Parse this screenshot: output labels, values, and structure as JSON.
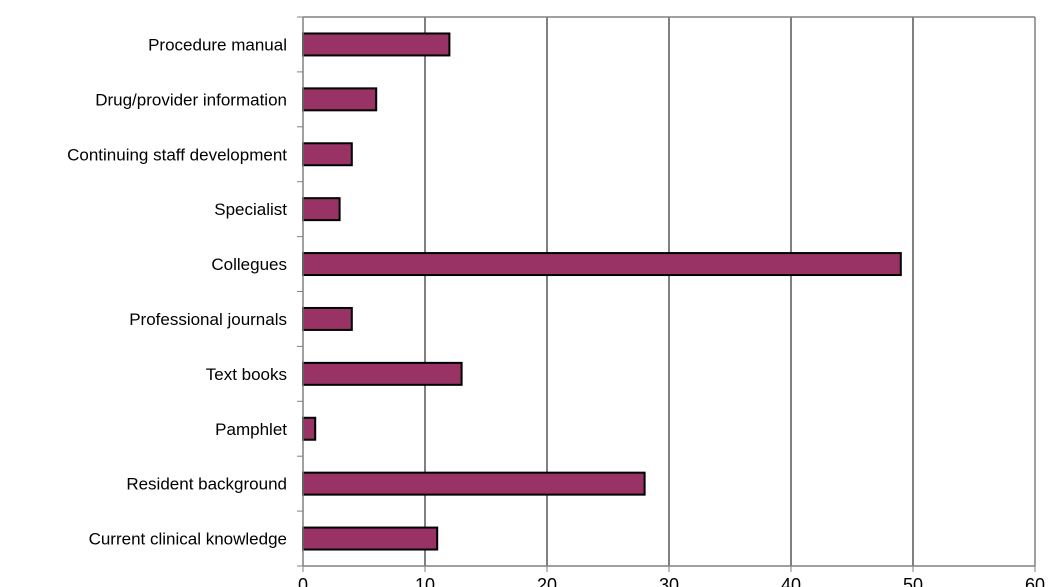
{
  "chart_data": {
    "type": "bar",
    "orientation": "horizontal",
    "categories": [
      "Procedure manual",
      "Drug/provider information",
      "Continuing staff development",
      "Specialist",
      "Collegues",
      "Professional journals",
      "Text books",
      "Pamphlet",
      "Resident background",
      "Current clinical knowledge"
    ],
    "values": [
      12,
      6,
      4,
      3,
      49,
      4,
      13,
      1,
      28,
      11
    ],
    "xlim": [
      0,
      60
    ],
    "x_ticks": [
      "0",
      "10",
      "20",
      "30",
      "40",
      "50",
      "60"
    ],
    "title": "",
    "xlabel": "",
    "ylabel": "",
    "grid": "vertical",
    "legend": "none",
    "colors": {
      "bar_fill": "#993366",
      "bar_stroke": "#000000",
      "gridline": "#000000",
      "axis": "#808080"
    }
  }
}
